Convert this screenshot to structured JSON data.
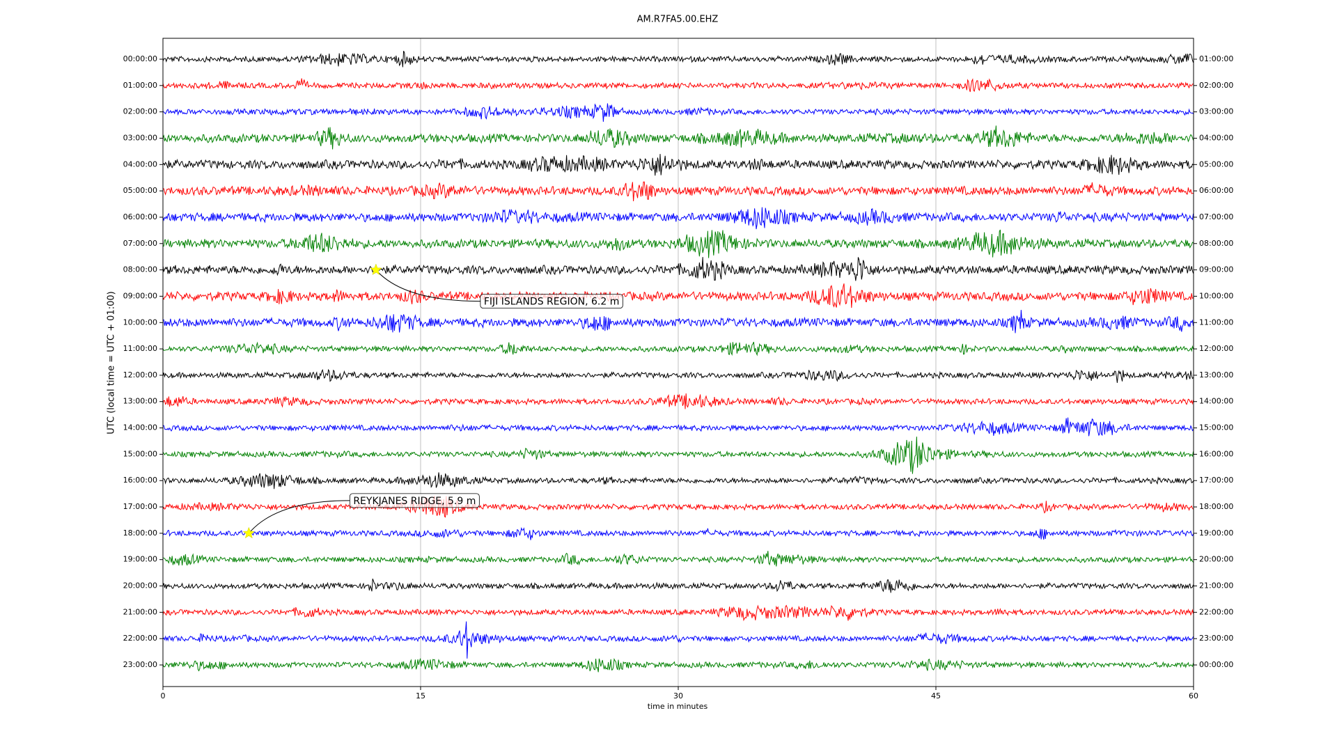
{
  "chart_data": {
    "type": "dayplot",
    "title": "AM.R7FA5.00.EHZ",
    "x_label": "time in minutes",
    "y_label": "UTC (local time = UTC + 01:00)",
    "xlim": [
      0,
      60
    ],
    "xticks": [
      0,
      15,
      30,
      45,
      60
    ],
    "grid": true,
    "colors": [
      "#000000",
      "#ff0000",
      "#0000ff",
      "#008000"
    ],
    "categories": [
      "00:00:00",
      "01:00:00",
      "02:00:00",
      "03:00:00",
      "04:00:00",
      "05:00:00",
      "06:00:00",
      "07:00:00",
      "08:00:00",
      "09:00:00",
      "10:00:00",
      "11:00:00",
      "12:00:00",
      "13:00:00",
      "14:00:00",
      "15:00:00",
      "16:00:00",
      "17:00:00",
      "18:00:00",
      "19:00:00",
      "20:00:00",
      "21:00:00",
      "22:00:00",
      "23:00:00"
    ],
    "right_labels": [
      "01:00:00",
      "02:00:00",
      "03:00:00",
      "04:00:00",
      "05:00:00",
      "06:00:00",
      "07:00:00",
      "08:00:00",
      "09:00:00",
      "10:00:00",
      "11:00:00",
      "12:00:00",
      "13:00:00",
      "14:00:00",
      "15:00:00",
      "16:00:00",
      "17:00:00",
      "18:00:00",
      "19:00:00",
      "20:00:00",
      "21:00:00",
      "22:00:00",
      "23:00:00",
      "00:00:00"
    ],
    "events": [
      {
        "text": "FIJI ISLANDS REGION, 6.2 m",
        "x": 12.4,
        "y": "08:00:00"
      },
      {
        "text": "REYKJANES RIDGE, 5.9 m",
        "x": 5,
        "y": "18:00:00"
      }
    ]
  }
}
